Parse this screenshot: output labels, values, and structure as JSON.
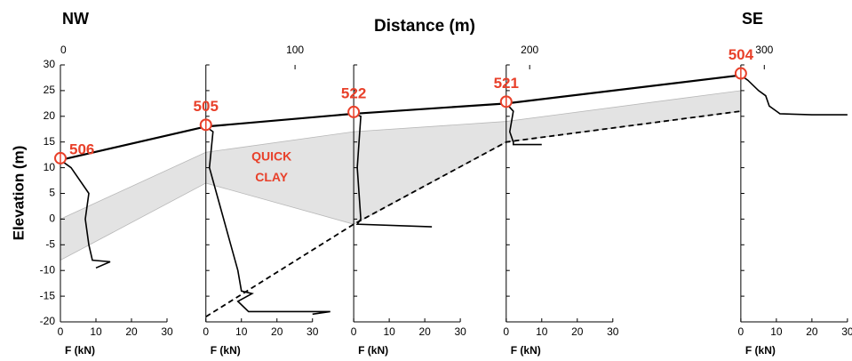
{
  "chart_data": {
    "type": "profile",
    "title": "Distance (m)",
    "ylabel": "Elevation (m)",
    "left_label": "NW",
    "right_label": "SE",
    "annotations": [
      "QUICK",
      "CLAY"
    ],
    "annotation_x": 90,
    "annotation_y": [
      12,
      8
    ],
    "xlim": [
      0,
      337
    ],
    "xticks": [
      0,
      100,
      200,
      300
    ],
    "ylim": [
      -20,
      30
    ],
    "yticks": [
      -20,
      -15,
      -10,
      -5,
      0,
      5,
      10,
      15,
      20,
      25,
      30
    ],
    "force_xlim": [
      0,
      30
    ],
    "force_ticks": [
      0,
      10,
      20,
      30
    ],
    "force_xlabel": "F (kN)",
    "ground": {
      "x": [
        0,
        62,
        125,
        190,
        290
      ],
      "values": [
        11.5,
        18,
        20.5,
        22.5,
        28
      ],
      "color": "#000000"
    },
    "quick_clay_top": {
      "x": [
        0,
        62,
        125,
        190,
        290
      ],
      "values": [
        0,
        13,
        17,
        19,
        25
      ]
    },
    "quick_clay_bottom": {
      "x": [
        0,
        62,
        125,
        190,
        290
      ],
      "values": [
        -8,
        7,
        -1,
        15,
        21
      ]
    },
    "quick_clay_color": "#e3e3e3",
    "dashed": {
      "x": [
        62,
        125,
        190,
        290
      ],
      "values": [
        -19,
        -1,
        15,
        21
      ]
    },
    "label_color": "#e8402a",
    "boreholes": [
      {
        "name": "506",
        "distance": 0,
        "ground": 11.5,
        "elevation": [
          11.5,
          10,
          5,
          0,
          -5,
          -8,
          -8.3,
          -9.5
        ],
        "force": [
          0,
          3,
          8,
          7,
          8,
          9,
          14,
          10
        ]
      },
      {
        "name": "505",
        "distance": 62,
        "ground": 18,
        "elevation": [
          18,
          17,
          10,
          5,
          0,
          -5,
          -10,
          -14,
          -14.5,
          -16,
          -18,
          -18,
          -18.5
        ],
        "force": [
          0,
          2,
          1,
          3,
          5,
          7,
          9,
          10,
          13,
          9,
          12,
          35,
          30
        ]
      },
      {
        "name": "522",
        "distance": 125,
        "ground": 20.5,
        "elevation": [
          20.5,
          20,
          10,
          0,
          -1,
          -1.5
        ],
        "force": [
          0,
          2,
          1,
          2,
          1,
          22
        ]
      },
      {
        "name": "521",
        "distance": 190,
        "ground": 22.5,
        "elevation": [
          22.5,
          21,
          17,
          15,
          14.5,
          14.5
        ],
        "force": [
          0,
          2,
          1,
          2,
          2,
          10
        ]
      },
      {
        "name": "504",
        "distance": 290,
        "ground": 28,
        "elevation": [
          28,
          27,
          25,
          24,
          22,
          21,
          20.5,
          20.3,
          20.3
        ],
        "force": [
          0,
          2,
          5,
          7,
          8,
          10,
          11,
          20,
          30
        ]
      }
    ]
  }
}
